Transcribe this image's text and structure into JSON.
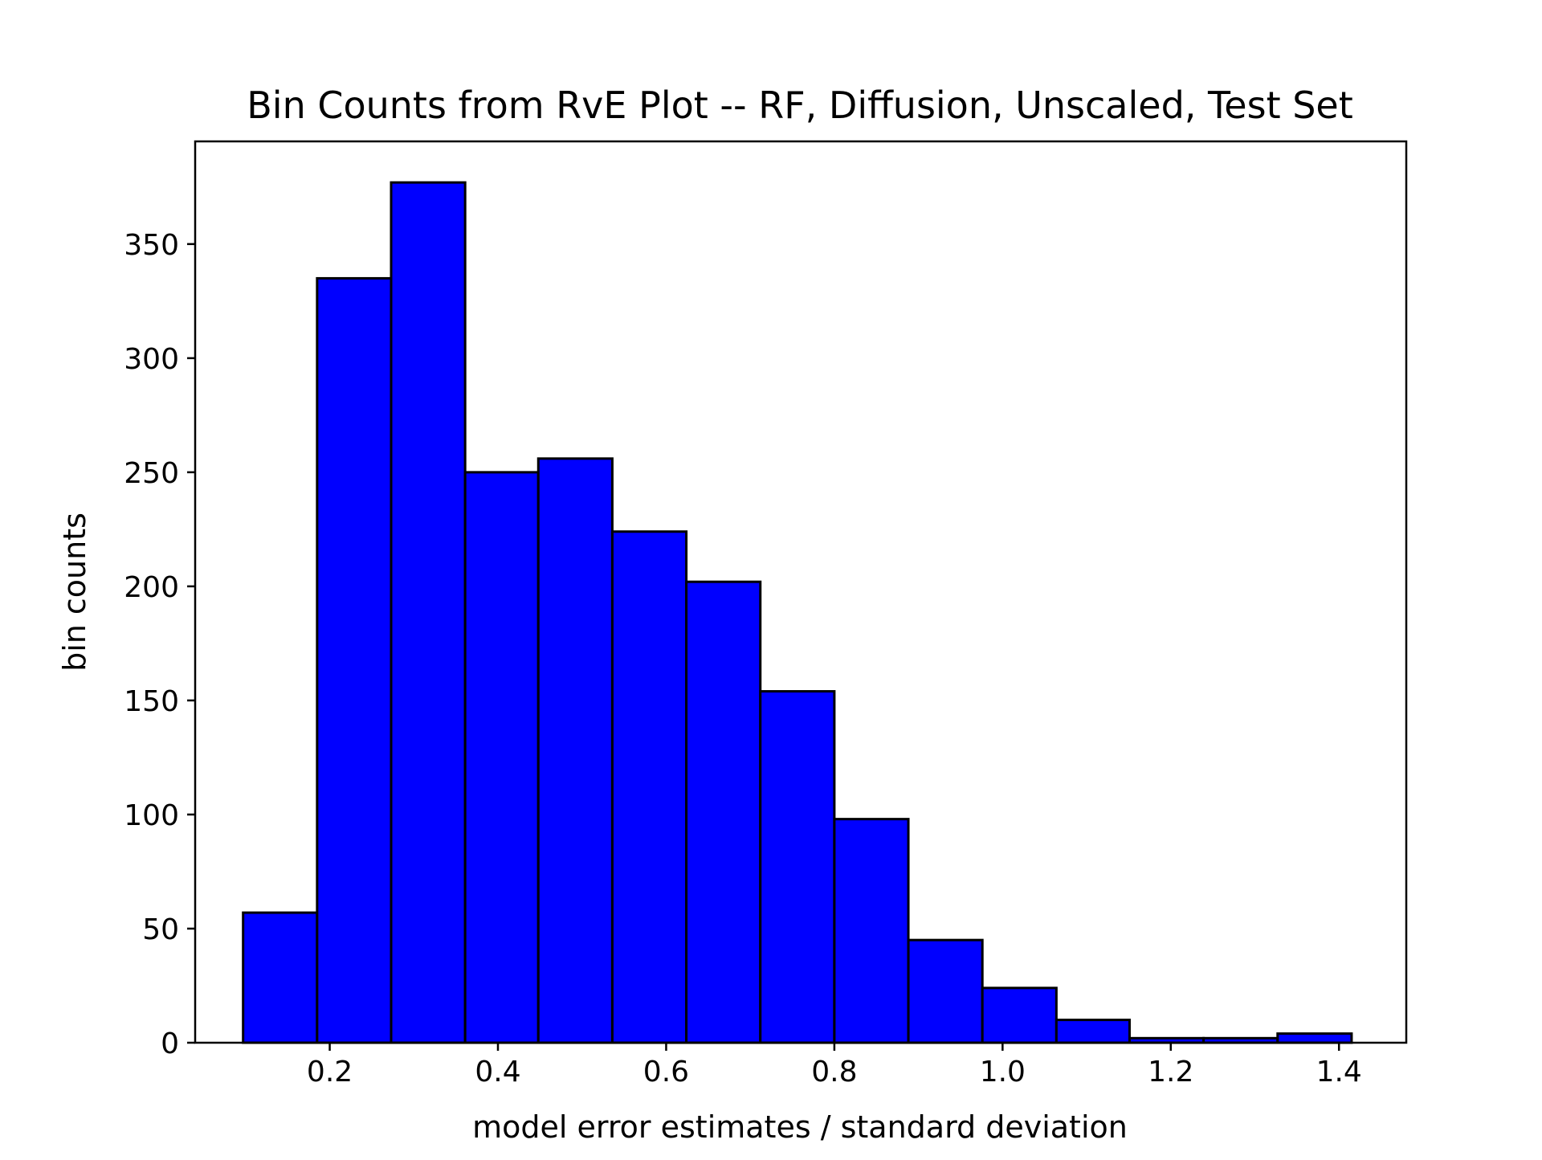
{
  "chart_data": {
    "type": "bar",
    "title": "Bin Counts from RvE Plot -- RF, Diffusion, Unscaled, Test Set",
    "xlabel": "model error estimates / standard deviation",
    "ylabel": "bin counts",
    "xlim": [
      0.04,
      1.48
    ],
    "ylim": [
      0,
      395
    ],
    "xticks": [
      0.2,
      0.4,
      0.6,
      0.8,
      1.0,
      1.2,
      1.4
    ],
    "xtick_labels": [
      "0.2",
      "0.4",
      "0.6",
      "0.8",
      "1.0",
      "1.2",
      "1.4"
    ],
    "yticks": [
      0,
      50,
      100,
      150,
      200,
      250,
      300,
      350
    ],
    "ytick_labels": [
      "0",
      "50",
      "100",
      "150",
      "200",
      "250",
      "300",
      "350"
    ],
    "bin_edges": [
      0.097,
      0.185,
      0.273,
      0.361,
      0.448,
      0.536,
      0.624,
      0.712,
      0.8,
      0.888,
      0.976,
      1.064,
      1.151,
      1.239,
      1.327,
      1.415
    ],
    "values": [
      57,
      335,
      377,
      250,
      256,
      224,
      202,
      154,
      98,
      45,
      24,
      10,
      2,
      2,
      4
    ],
    "bar_color": "#0000ff",
    "edge_color": "#000000",
    "grid": false,
    "legend": false
  }
}
